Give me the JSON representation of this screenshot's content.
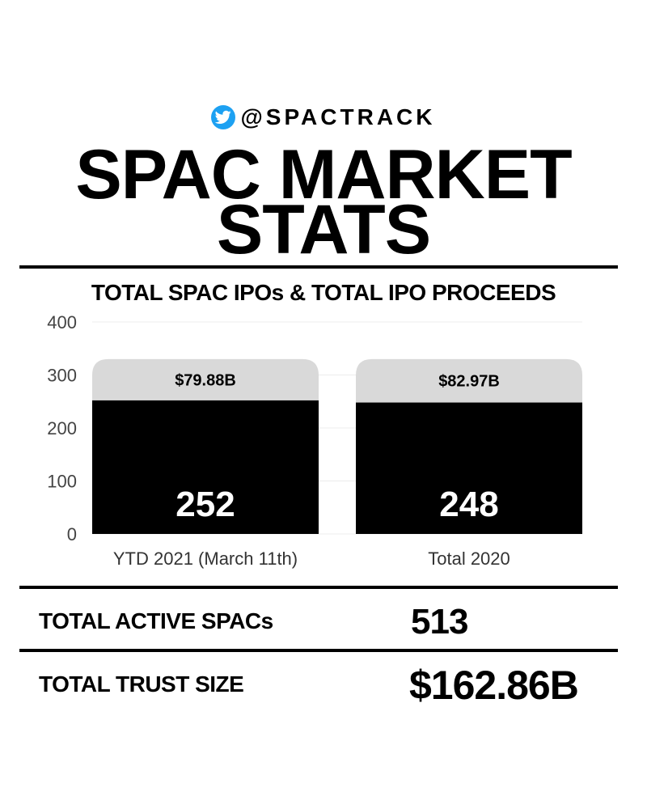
{
  "header": {
    "handle": "@SPACTRACK",
    "icon": "twitter-bird-icon",
    "icon_color": "#1DA1F2",
    "title_line1": "SPAC MARKET",
    "title_line2": "STATS"
  },
  "chart_data": {
    "type": "bar",
    "title": "TOTAL SPAC IPOs & TOTAL IPO PROCEEDS",
    "categories": [
      "YTD 2021 (March 11th)",
      "Total 2020"
    ],
    "values": [
      252,
      248
    ],
    "cap_values": [
      330,
      330
    ],
    "bar_labels": [
      "252",
      "248"
    ],
    "cap_labels": [
      "$79.88B",
      "$82.97B"
    ],
    "series": [
      {
        "name": "Total SPAC IPOs",
        "values": [
          252,
          248
        ],
        "color": "#000000"
      },
      {
        "name": "Total IPO Proceeds",
        "labels": [
          "$79.88B",
          "$82.97B"
        ],
        "color": "#d9d9d9"
      }
    ],
    "yticks": [
      0,
      100,
      200,
      300,
      400
    ],
    "ylim": [
      0,
      400
    ],
    "grid": true,
    "xlabel": "",
    "ylabel": ""
  },
  "stats": {
    "active_label": "TOTAL ACTIVE SPACs",
    "active_value": "513",
    "trust_label": "TOTAL TRUST SIZE",
    "trust_value": "$162.86B"
  }
}
